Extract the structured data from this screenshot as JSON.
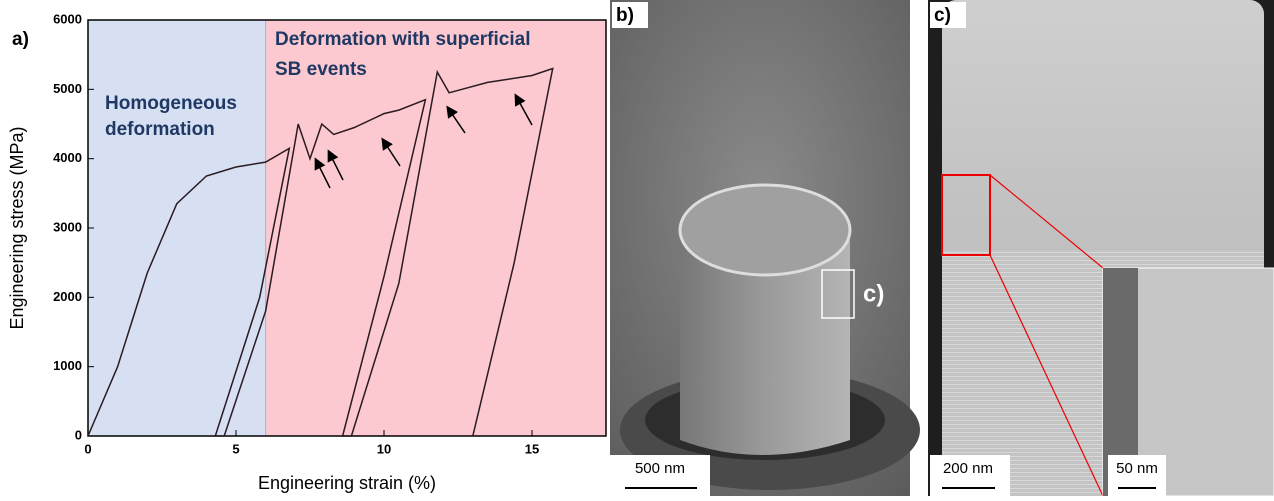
{
  "chart_data": {
    "type": "line",
    "panel_label": "a)",
    "x_label": "Engineering strain (%)",
    "y_label": "Engineering stress (MPa)",
    "xlim": [
      0,
      17.5
    ],
    "xticks": [
      0,
      5,
      10,
      15
    ],
    "ylim": [
      0,
      6000
    ],
    "yticks": [
      0,
      1000,
      2000,
      3000,
      4000,
      5000,
      6000
    ],
    "regions": [
      {
        "x": [
          0,
          6
        ],
        "color": "#d6e0f2",
        "label": [
          "Homogeneous",
          "deformation"
        ]
      },
      {
        "x": [
          6,
          17.5
        ],
        "color": "#fbc9cf",
        "label": [
          "Deformation with superficial",
          "SB events"
        ]
      }
    ],
    "series": [
      {
        "color": "#2a1a22",
        "x": [
          0,
          1,
          2,
          3,
          4,
          5,
          6,
          6.8,
          5.8,
          4.3,
          4.6,
          6,
          7.1,
          7.5,
          7.9,
          8.3,
          9,
          10,
          10.5,
          11.4,
          10,
          8.6,
          8.9,
          10.5,
          11.8,
          12.2,
          13.5,
          15,
          15.7,
          14.4,
          13
        ],
        "values": [
          0,
          1000,
          2350,
          3350,
          3750,
          3880,
          3950,
          4150,
          2000,
          0,
          0,
          1800,
          4500,
          4000,
          4500,
          4350,
          4450,
          4650,
          4700,
          4850,
          2300,
          0,
          0,
          2200,
          5250,
          4950,
          5100,
          5200,
          5300,
          2500,
          0
        ]
      }
    ]
  },
  "panel_b": {
    "label": "b)",
    "box_label": "c)",
    "scale_bar": "500 nm"
  },
  "panel_c": {
    "label": "c)",
    "scale_bar": "200 nm",
    "inset_scale_bar": "50 nm"
  }
}
